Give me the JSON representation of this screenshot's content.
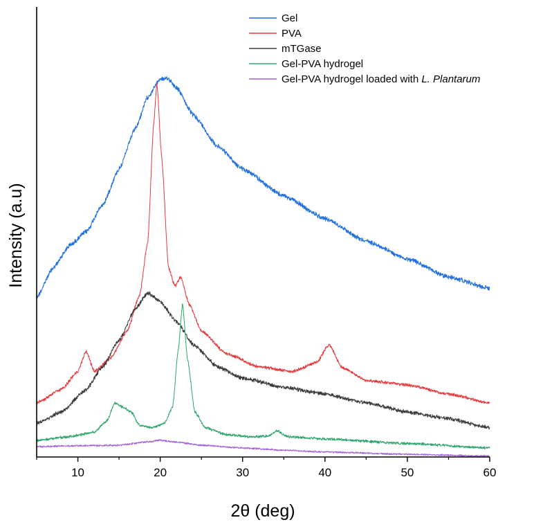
{
  "chart_data": {
    "type": "line",
    "title": "",
    "xlabel": "2θ (deg)",
    "ylabel": "Intensity (a.u)",
    "xlim": [
      5,
      60
    ],
    "x_ticks": [
      "10",
      "20",
      "30",
      "40",
      "50",
      "60"
    ],
    "y_ticks_labeled": false,
    "grid": false,
    "legend_position": "top-right",
    "series": [
      {
        "name": "Gel",
        "color": "#1f6fe0",
        "noise": 2.6,
        "points": [
          [
            5,
            0.355
          ],
          [
            7,
            0.42
          ],
          [
            9,
            0.47
          ],
          [
            11,
            0.5
          ],
          [
            13,
            0.56
          ],
          [
            15,
            0.64
          ],
          [
            17,
            0.73
          ],
          [
            18.5,
            0.8
          ],
          [
            20,
            0.84
          ],
          [
            21,
            0.84
          ],
          [
            22,
            0.82
          ],
          [
            24,
            0.76
          ],
          [
            27,
            0.69
          ],
          [
            30,
            0.64
          ],
          [
            35,
            0.58
          ],
          [
            40,
            0.53
          ],
          [
            45,
            0.48
          ],
          [
            50,
            0.44
          ],
          [
            55,
            0.4
          ],
          [
            60,
            0.375
          ]
        ]
      },
      {
        "name": "PVA",
        "color": "#e8383c",
        "noise": 1.8,
        "points": [
          [
            5,
            0.12
          ],
          [
            8,
            0.15
          ],
          [
            10,
            0.19
          ],
          [
            11,
            0.235
          ],
          [
            12,
            0.19
          ],
          [
            14,
            0.22
          ],
          [
            16,
            0.28
          ],
          [
            17.5,
            0.36
          ],
          [
            18.5,
            0.48
          ],
          [
            19.2,
            0.74
          ],
          [
            19.6,
            0.83
          ],
          [
            20.2,
            0.66
          ],
          [
            21,
            0.42
          ],
          [
            21.8,
            0.38
          ],
          [
            22.5,
            0.4
          ],
          [
            23.5,
            0.34
          ],
          [
            25,
            0.28
          ],
          [
            28,
            0.23
          ],
          [
            32,
            0.2
          ],
          [
            36,
            0.19
          ],
          [
            39,
            0.21
          ],
          [
            40.5,
            0.25
          ],
          [
            42,
            0.2
          ],
          [
            45,
            0.17
          ],
          [
            50,
            0.16
          ],
          [
            55,
            0.14
          ],
          [
            60,
            0.12
          ]
        ]
      },
      {
        "name": "mTGase",
        "color": "#3a3a3a",
        "noise": 2.2,
        "points": [
          [
            5,
            0.075
          ],
          [
            8,
            0.1
          ],
          [
            11,
            0.15
          ],
          [
            13,
            0.2
          ],
          [
            15,
            0.26
          ],
          [
            17,
            0.33
          ],
          [
            18.5,
            0.365
          ],
          [
            20,
            0.345
          ],
          [
            22,
            0.3
          ],
          [
            24,
            0.25
          ],
          [
            27,
            0.2
          ],
          [
            30,
            0.175
          ],
          [
            35,
            0.155
          ],
          [
            40,
            0.14
          ],
          [
            45,
            0.12
          ],
          [
            50,
            0.1
          ],
          [
            55,
            0.085
          ],
          [
            60,
            0.065
          ]
        ]
      },
      {
        "name": "Gel-PVA hydrogel",
        "color": "#2ea56b",
        "noise": 1.5,
        "points": [
          [
            5,
            0.037
          ],
          [
            9,
            0.045
          ],
          [
            12,
            0.055
          ],
          [
            13.5,
            0.08
          ],
          [
            14.5,
            0.12
          ],
          [
            15.5,
            0.11
          ],
          [
            16.5,
            0.1
          ],
          [
            17.5,
            0.07
          ],
          [
            19,
            0.065
          ],
          [
            20.5,
            0.075
          ],
          [
            21.5,
            0.11
          ],
          [
            22.2,
            0.24
          ],
          [
            22.7,
            0.34
          ],
          [
            23.3,
            0.22
          ],
          [
            24.2,
            0.1
          ],
          [
            25.5,
            0.065
          ],
          [
            28,
            0.05
          ],
          [
            31,
            0.045
          ],
          [
            33,
            0.046
          ],
          [
            34.2,
            0.058
          ],
          [
            35.5,
            0.045
          ],
          [
            40,
            0.04
          ],
          [
            50,
            0.03
          ],
          [
            60,
            0.02
          ]
        ]
      },
      {
        "name": "Gel-PVA hydrogel loaded with L. Plantarum",
        "color": "#a064d6",
        "noise": 1.0,
        "points": [
          [
            5,
            0.023
          ],
          [
            10,
            0.025
          ],
          [
            15,
            0.026
          ],
          [
            18,
            0.033
          ],
          [
            20,
            0.037
          ],
          [
            22,
            0.033
          ],
          [
            25,
            0.026
          ],
          [
            30,
            0.02
          ],
          [
            35,
            0.015
          ],
          [
            40,
            0.011
          ],
          [
            50,
            0.006
          ],
          [
            60,
            0.002
          ]
        ]
      }
    ]
  },
  "legend": {
    "items": [
      {
        "label": "Gel",
        "color": "#1f6fe0"
      },
      {
        "label": "PVA",
        "color": "#e8383c"
      },
      {
        "label": "mTGase",
        "color": "#3a3a3a"
      },
      {
        "label": "Gel-PVA hydrogel",
        "color": "#2ea56b"
      },
      {
        "label_prefix": "Gel-PVA hydrogel loaded with ",
        "label_italic": "L. Plantarum",
        "color": "#a064d6"
      }
    ]
  }
}
